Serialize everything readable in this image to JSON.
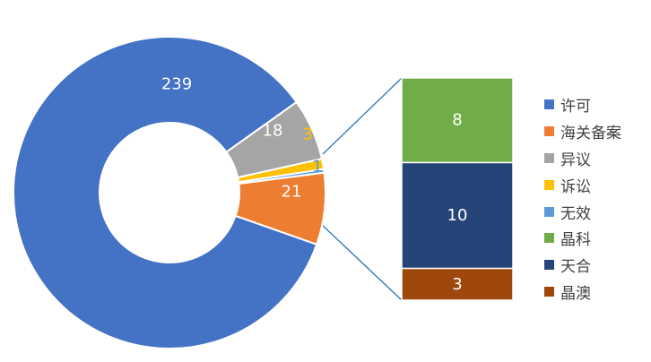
{
  "chart_data": [
    {
      "type": "pie",
      "subtype": "doughnut",
      "categories": [
        "许可",
        "海关备案",
        "异议",
        "诉讼",
        "无效"
      ],
      "values": [
        239,
        21,
        18,
        3,
        1
      ],
      "data_labels": [
        "239",
        "21",
        "18",
        "3",
        "1"
      ],
      "colors": [
        "#4472C4",
        "#ED7D31",
        "#A5A5A5",
        "#FFC000",
        "#5B9BD5"
      ],
      "label_colors": [
        "#ffffff",
        "#ffffff",
        "#ffffff",
        "#FFC000",
        "#5B9BD5"
      ],
      "expanded_category": "海关备案"
    },
    {
      "type": "bar",
      "subtype": "stacked-100",
      "parent_category": "海关备案",
      "categories": [
        "晶科",
        "天合",
        "晶澳"
      ],
      "values": [
        8,
        10,
        3
      ],
      "data_labels": [
        "8",
        "10",
        "3"
      ],
      "colors": [
        "#70AD47",
        "#264478",
        "#9E480E"
      ]
    }
  ],
  "legend": {
    "placement": "right",
    "items": [
      {
        "label": "许可",
        "color": "#4472C4"
      },
      {
        "label": "海关备案",
        "color": "#ED7D31"
      },
      {
        "label": "异议",
        "color": "#A5A5A5"
      },
      {
        "label": "诉讼",
        "color": "#FFC000"
      },
      {
        "label": "无效",
        "color": "#5B9BD5"
      },
      {
        "label": "晶科",
        "color": "#70AD47"
      },
      {
        "label": "天合",
        "color": "#264478"
      },
      {
        "label": "晶澳",
        "color": "#9E480E"
      }
    ]
  }
}
